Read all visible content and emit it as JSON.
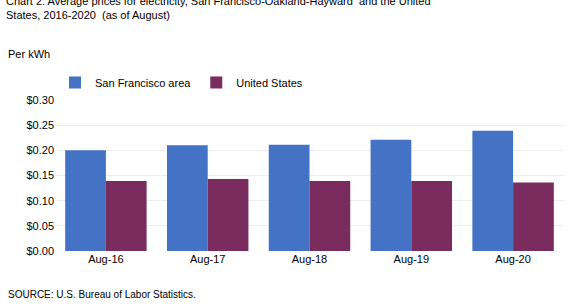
{
  "chart_data": {
    "type": "bar",
    "title": "Chart 2. Average prices for electricity, San Francisco-Oakland-Hayward  and the United\nStates, 2016-2020  (as of August)",
    "ylabel": "Per kWh",
    "source": "SOURCE: U.S. Bureau of Labor Statistics.",
    "categories": [
      "Aug-16",
      "Aug-17",
      "Aug-18",
      "Aug-19",
      "Aug-20"
    ],
    "series": [
      {
        "name": "San Francisco area",
        "color": "#4472C4",
        "values": [
          0.2,
          0.21,
          0.211,
          0.221,
          0.239
        ]
      },
      {
        "name": "United States",
        "color": "#7B2C5E",
        "values": [
          0.139,
          0.143,
          0.139,
          0.139,
          0.136
        ]
      }
    ],
    "ylim": [
      0.0,
      0.3
    ],
    "yticks": [
      {
        "value": 0.0,
        "label": "$0.00"
      },
      {
        "value": 0.05,
        "label": "$0.05"
      },
      {
        "value": 0.1,
        "label": "$0.10"
      },
      {
        "value": 0.15,
        "label": "$0.15"
      },
      {
        "value": 0.2,
        "label": "$0.20"
      },
      {
        "value": 0.25,
        "label": "$0.25"
      },
      {
        "value": 0.3,
        "label": "$0.30"
      }
    ],
    "grid": true,
    "legend": "top left"
  }
}
